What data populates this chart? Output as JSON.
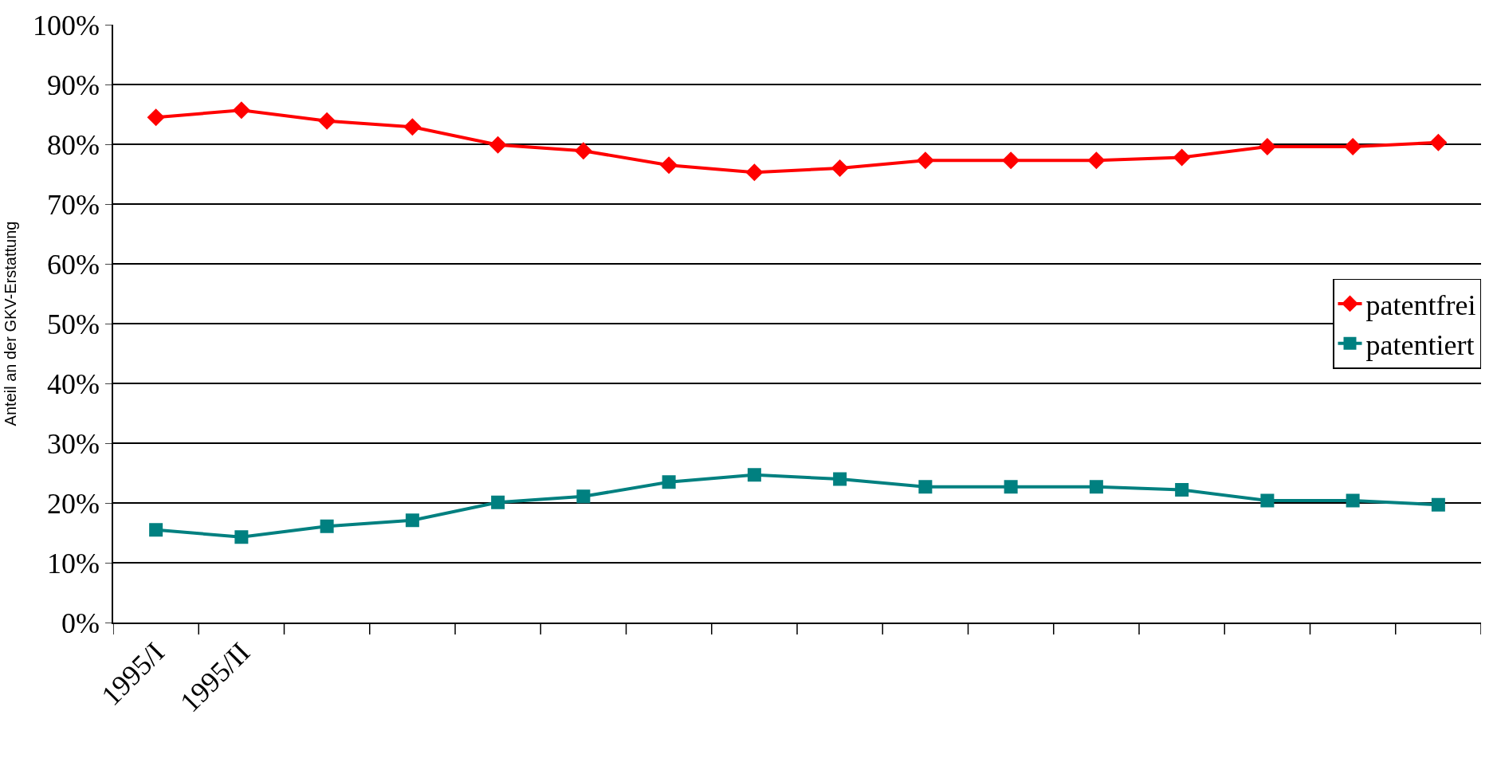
{
  "chart_data": {
    "type": "line",
    "ylabel": "Anteil an der GKV-Erstattung",
    "categories": [
      "1995/I",
      "1995/II",
      null,
      null,
      null,
      null,
      null,
      null,
      null,
      null,
      null,
      null,
      null,
      null,
      null,
      null
    ],
    "series": [
      {
        "name": "patentfrei",
        "color": "#ff0000",
        "marker": "diamond",
        "values": [
          84.5,
          85.7,
          83.9,
          82.9,
          79.9,
          78.9,
          76.5,
          75.3,
          76,
          77.3,
          77.3,
          77.3,
          77.8,
          79.6,
          79.6,
          80.3
        ]
      },
      {
        "name": "patentiert",
        "color": "#008080",
        "marker": "square",
        "values": [
          15.5,
          14.3,
          16.1,
          17.1,
          20.1,
          21.1,
          23.5,
          24.7,
          24,
          22.7,
          22.7,
          22.7,
          22.2,
          20.4,
          20.4,
          19.7
        ]
      }
    ],
    "ylim": [
      0,
      100
    ],
    "yticks": [
      {
        "value": 0,
        "label": "0%"
      },
      {
        "value": 10,
        "label": "10%"
      },
      {
        "value": 20,
        "label": "20%"
      },
      {
        "value": 30,
        "label": "30%"
      },
      {
        "value": 40,
        "label": "40%"
      },
      {
        "value": 50,
        "label": "50%"
      },
      {
        "value": 60,
        "label": "60%"
      },
      {
        "value": 70,
        "label": "70%"
      },
      {
        "value": 80,
        "label": "80%"
      },
      {
        "value": 90,
        "label": "90%"
      },
      {
        "value": 100,
        "label": "100%"
      }
    ],
    "grid": "y",
    "legend": "right",
    "line_style": "solid"
  }
}
